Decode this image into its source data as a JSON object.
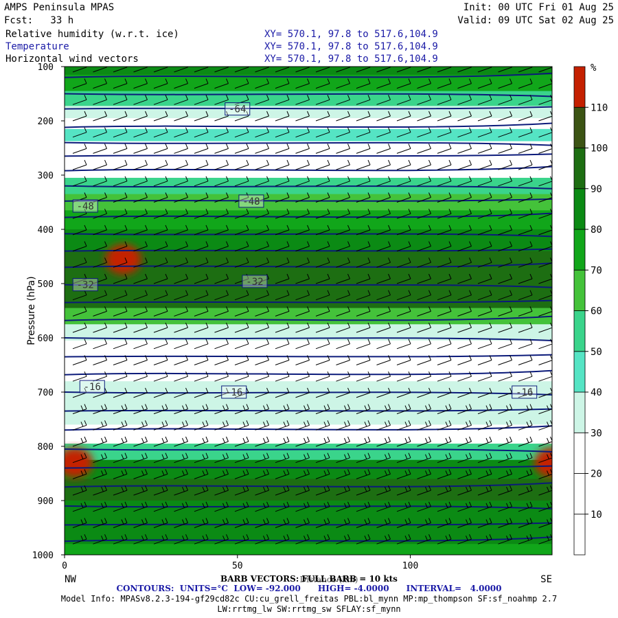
{
  "header": {
    "model": "AMPS Peninsula MPAS",
    "fcst": "Fcst:   33 h",
    "init": "Init: 00 UTC Fri 01 Aug 25",
    "valid": "Valid: 09 UTC Sat 02 Aug 25",
    "fields": [
      {
        "name": "Relative humidity (w.r.t. ice)",
        "xy": "XY= 570.1, 97.8 to 517.6,104.9"
      },
      {
        "name": "Temperature",
        "xy": "XY= 570.1, 97.8 to 517.6,104.9"
      },
      {
        "name": "Horizontal wind vectors",
        "xy": "XY= 570.1, 97.8 to 517.6,104.9"
      }
    ]
  },
  "colors": {
    "temperature_contour": "#0b1a7a",
    "rh_scale": [
      "#ffffff",
      "#ffffff",
      "#ffffff",
      "#cdf5e6",
      "#55e4c4",
      "#3ad48b",
      "#44c23a",
      "#11a61a",
      "#0b8a14",
      "#1d6e12",
      "#3c5414",
      "#c42000"
    ]
  },
  "footer": {
    "barb": "BARB VECTORS: FULL BARB = 10 kts",
    "contours": "CONTOURS:  UNITS=°C  LOW= -92.000      HIGH= -4.0000      INTERVAL=   4.0000",
    "model_info": "Model Info: MPASv8.2.3-194-gf29cd82c CU:cu_grell_freitas PBL:bl_mynn MP:mp_thompson SF:sf_noahmp 2.7",
    "model_info2": "LW:rrtmg_lw SW:rrtmg_sw SFLAY:sf_mynn"
  },
  "chart_data": {
    "type": "heatmap",
    "ylabel": "Pressure (hPa)",
    "xlabel": "Distance (km)",
    "x_ticks": [
      0,
      50,
      100
    ],
    "y_ticks": [
      100,
      200,
      300,
      400,
      500,
      600,
      700,
      800,
      900,
      1000
    ],
    "xlim": [
      0,
      141
    ],
    "ylim": [
      1000,
      100
    ],
    "x_end_labels": {
      "left": "NW",
      "right": "SE"
    },
    "colorbar": {
      "unit": "%",
      "levels": [
        0,
        10,
        20,
        30,
        40,
        50,
        60,
        70,
        80,
        90,
        100,
        110,
        120
      ],
      "tick_labels": [
        "10",
        "20",
        "30",
        "40",
        "50",
        "60",
        "70",
        "80",
        "90",
        "100",
        "110"
      ]
    },
    "rh_bands": [
      {
        "p": 100,
        "rh": 85
      },
      {
        "p": 130,
        "rh": 72
      },
      {
        "p": 160,
        "rh": 55
      },
      {
        "p": 185,
        "rh": 35
      },
      {
        "p": 205,
        "rh": 15
      },
      {
        "p": 225,
        "rh": 40
      },
      {
        "p": 250,
        "rh": 22
      },
      {
        "p": 270,
        "rh": 5
      },
      {
        "p": 290,
        "rh": 28
      },
      {
        "p": 320,
        "rh": 55
      },
      {
        "p": 350,
        "rh": 62
      },
      {
        "p": 380,
        "rh": 75
      },
      {
        "p": 420,
        "rh": 88
      },
      {
        "p": 460,
        "rh": 96
      },
      {
        "p": 500,
        "rh": 98
      },
      {
        "p": 530,
        "rh": 90
      },
      {
        "p": 560,
        "rh": 62
      },
      {
        "p": 590,
        "rh": 35
      },
      {
        "p": 620,
        "rh": 18
      },
      {
        "p": 660,
        "rh": 25
      },
      {
        "p": 700,
        "rh": 38
      },
      {
        "p": 740,
        "rh": 30
      },
      {
        "p": 780,
        "rh": 22
      },
      {
        "p": 810,
        "rh": 55
      },
      {
        "p": 840,
        "rh": 82
      },
      {
        "p": 880,
        "rh": 92
      },
      {
        "p": 920,
        "rh": 86
      },
      {
        "p": 960,
        "rh": 80
      },
      {
        "p": 1000,
        "rh": 75
      }
    ],
    "temperature_contours": [
      {
        "value": -64,
        "label": "-64",
        "p": [
          178,
          182
        ],
        "label_x": 50
      },
      {
        "value": -48,
        "label": "-48",
        "p": [
          357,
          348
        ],
        "label_x": [
          6,
          54
        ]
      },
      {
        "value": -32,
        "label": "-32",
        "p": [
          502,
          496
        ],
        "label_x": [
          6,
          55
        ]
      },
      {
        "value": -16,
        "label": "-16",
        "p": [
          690,
          700
        ],
        "label_x": [
          8,
          49,
          133
        ]
      }
    ],
    "temperature_lines_p": [
      120,
      150,
      178,
      212,
      240,
      265,
      292,
      320,
      348,
      378,
      408,
      440,
      470,
      502,
      535,
      568,
      600,
      635,
      668,
      700,
      735,
      770,
      805,
      840,
      875,
      910,
      945,
      975
    ],
    "high_rh_cells": [
      {
        "x": 17,
        "p": 455,
        "rh": 118
      },
      {
        "x": 3,
        "p": 830,
        "rh": 118
      },
      {
        "x": 141,
        "p": 830,
        "rh": 118
      }
    ],
    "wind": {
      "full_barb_kts": 10,
      "barb_levels_p": [
        110,
        140,
        170,
        200,
        230,
        260,
        290,
        320,
        350,
        380,
        410,
        440,
        470,
        500,
        530,
        560,
        590,
        620,
        650,
        680,
        710,
        740,
        770,
        800,
        830,
        860,
        890,
        920,
        950,
        980
      ]
    }
  }
}
